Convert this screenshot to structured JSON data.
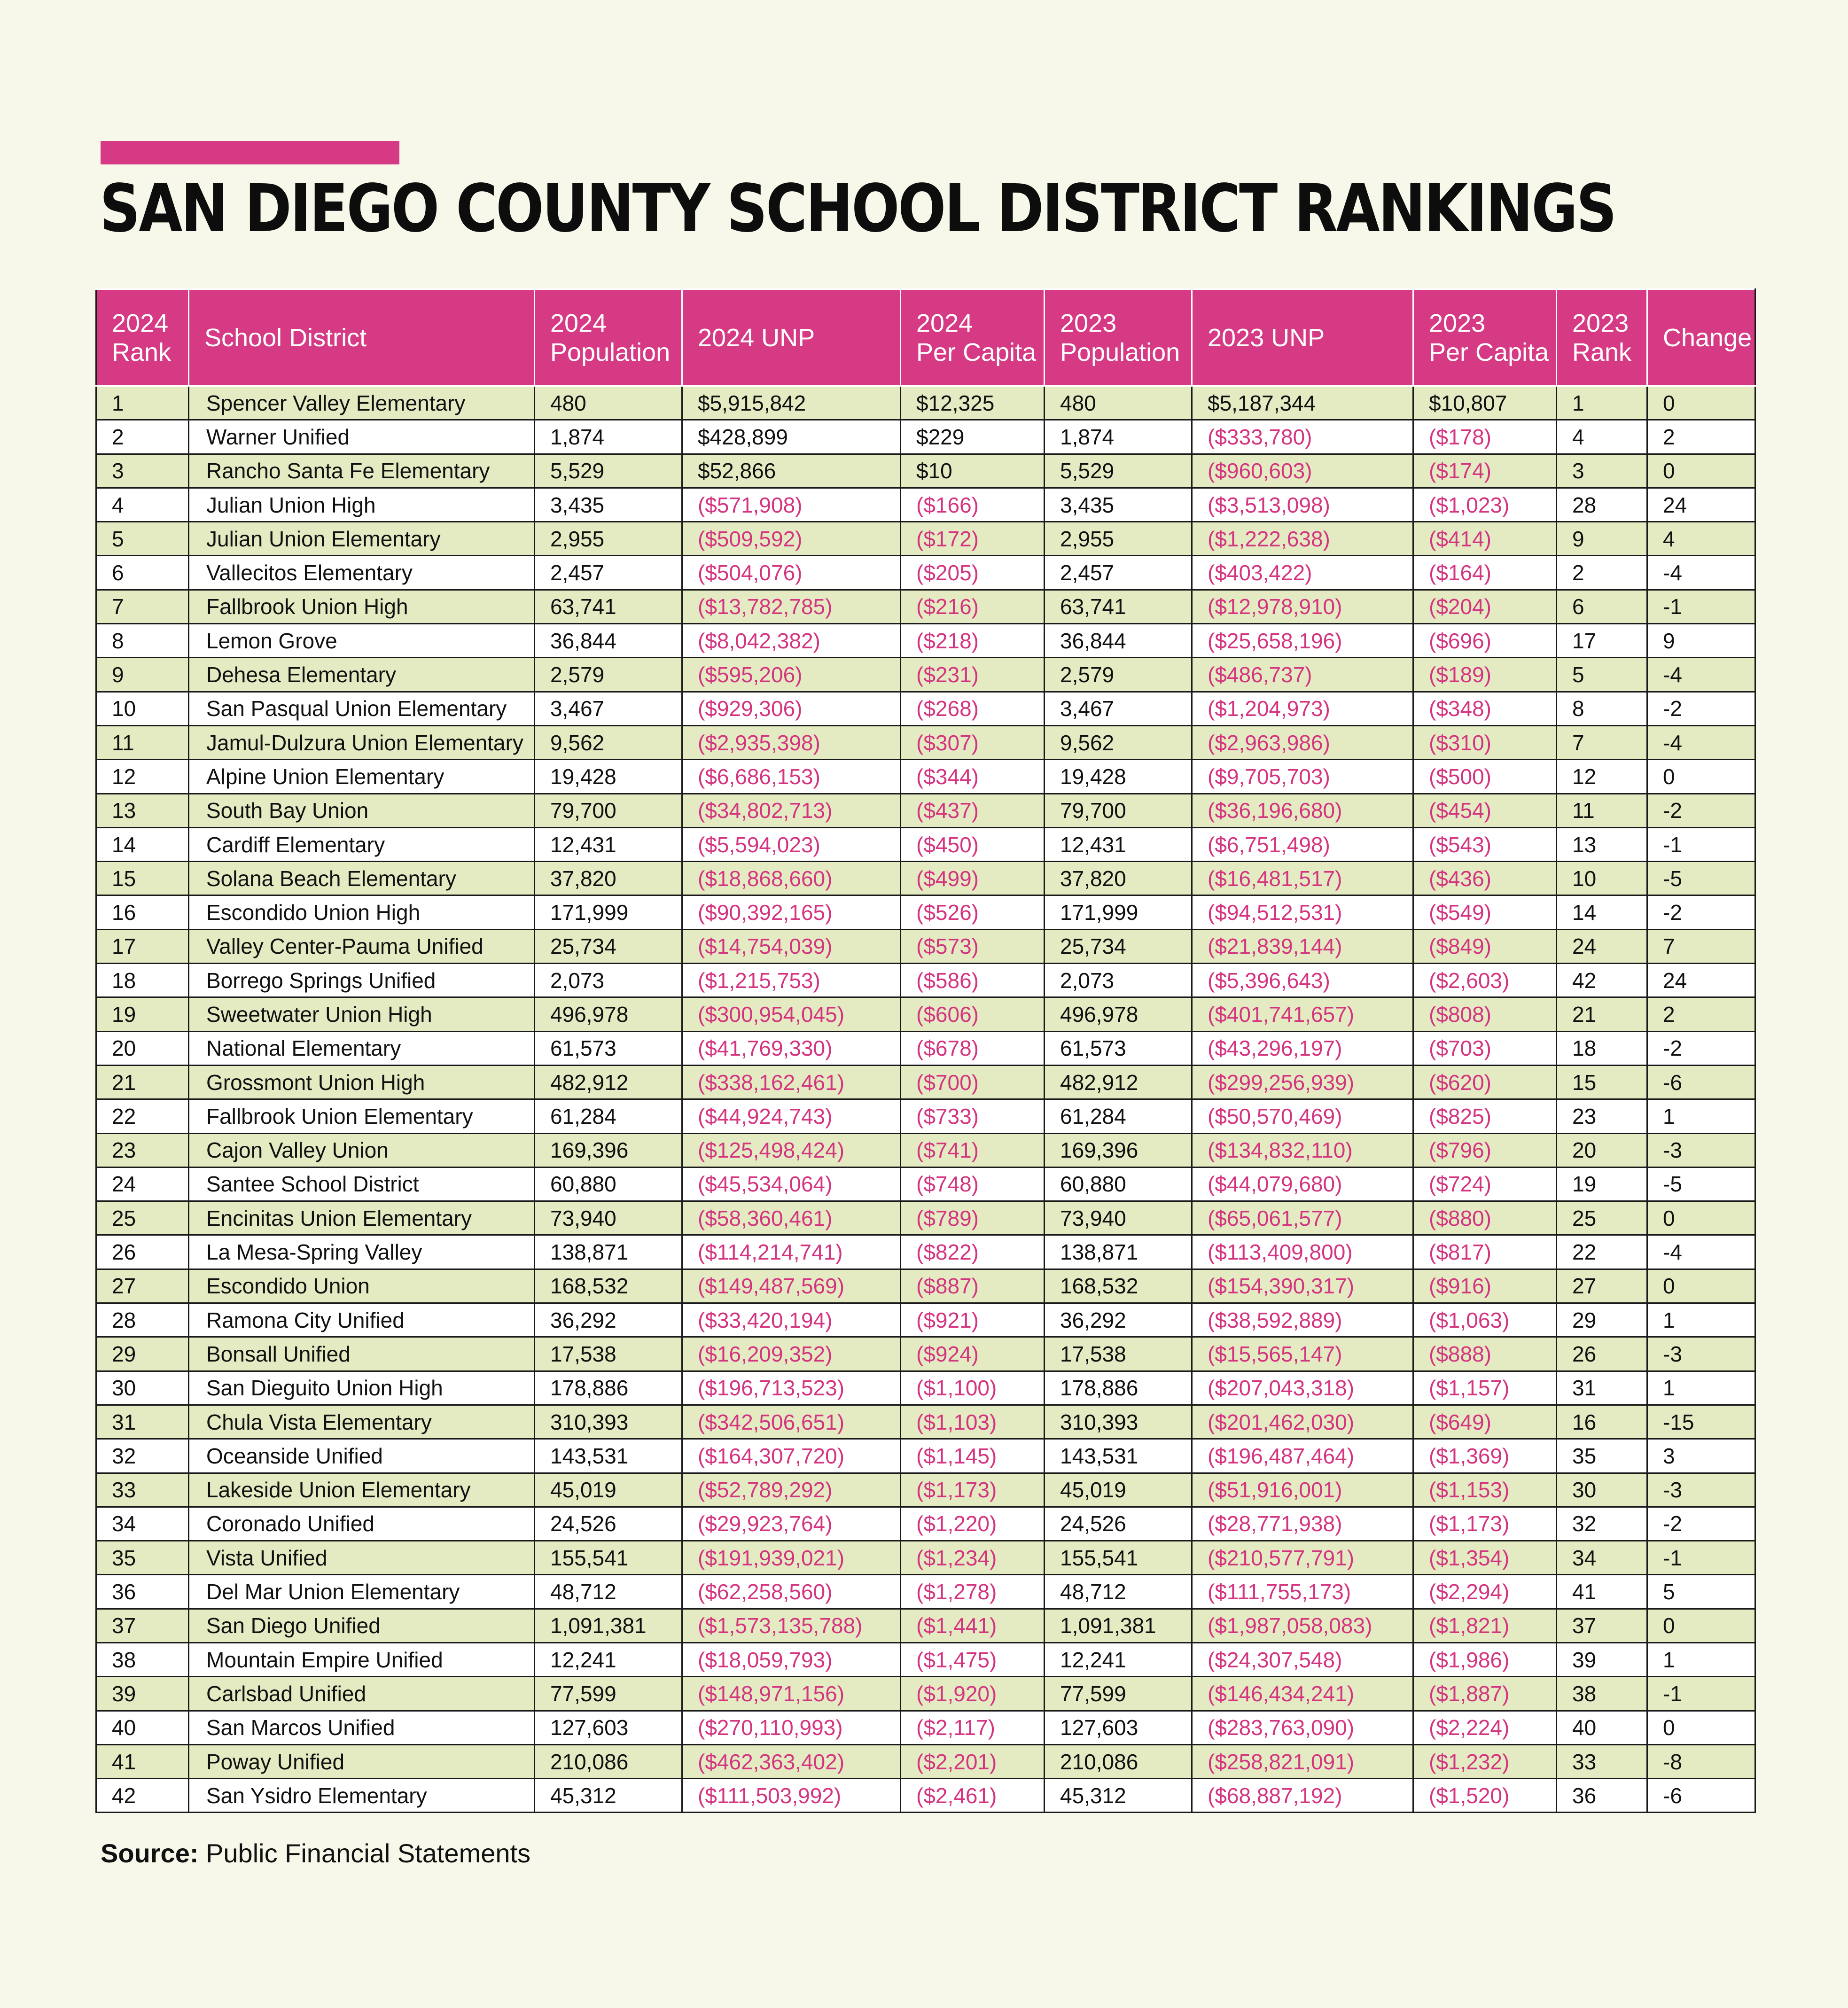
{
  "title": "SAN DIEGO COUNTY SCHOOL DISTRICT RANKINGS",
  "colors": {
    "accent": "#d63a84",
    "negative_text": "#d43480",
    "row_stripe": "#e4ebc2",
    "background": "#f8f8ea"
  },
  "table": {
    "headers": [
      {
        "line1": "2024",
        "line2": "Rank"
      },
      {
        "line1": "School District",
        "line2": ""
      },
      {
        "line1": "2024",
        "line2": "Population"
      },
      {
        "line1": "2024 UNP",
        "line2": ""
      },
      {
        "line1": "2024",
        "line2": "Per Capita"
      },
      {
        "line1": "2023",
        "line2": "Population"
      },
      {
        "line1": "2023 UNP",
        "line2": ""
      },
      {
        "line1": "2023",
        "line2": "Per Capita"
      },
      {
        "line1": "2023",
        "line2": "Rank"
      },
      {
        "line1": "Change",
        "line2": ""
      }
    ],
    "rows": [
      [
        "1",
        "Spencer Valley Elementary",
        "480",
        "$5,915,842",
        "$12,325",
        "480",
        "$5,187,344",
        "$10,807",
        "1",
        "0"
      ],
      [
        "2",
        "Warner Unified",
        "1,874",
        "$428,899",
        "$229",
        "1,874",
        "($333,780)",
        "($178)",
        "4",
        "2"
      ],
      [
        "3",
        "Rancho Santa Fe Elementary",
        "5,529",
        "$52,866",
        "$10",
        "5,529",
        "($960,603)",
        "($174)",
        "3",
        "0"
      ],
      [
        "4",
        "Julian Union High",
        "3,435",
        "($571,908)",
        "($166)",
        "3,435",
        "($3,513,098)",
        "($1,023)",
        "28",
        "24"
      ],
      [
        "5",
        "Julian Union Elementary",
        "2,955",
        "($509,592)",
        "($172)",
        "2,955",
        "($1,222,638)",
        "($414)",
        "9",
        "4"
      ],
      [
        "6",
        "Vallecitos Elementary",
        "2,457",
        "($504,076)",
        "($205)",
        "2,457",
        "($403,422)",
        "($164)",
        "2",
        "-4"
      ],
      [
        "7",
        "Fallbrook Union High",
        "63,741",
        "($13,782,785)",
        "($216)",
        "63,741",
        "($12,978,910)",
        "($204)",
        "6",
        "-1"
      ],
      [
        "8",
        "Lemon Grove",
        "36,844",
        "($8,042,382)",
        "($218)",
        "36,844",
        "($25,658,196)",
        "($696)",
        "17",
        "9"
      ],
      [
        "9",
        "Dehesa Elementary",
        "2,579",
        "($595,206)",
        "($231)",
        "2,579",
        "($486,737)",
        "($189)",
        "5",
        "-4"
      ],
      [
        "10",
        "San Pasqual Union Elementary",
        "3,467",
        "($929,306)",
        "($268)",
        "3,467",
        "($1,204,973)",
        "($348)",
        "8",
        "-2"
      ],
      [
        "11",
        "Jamul-Dulzura Union Elementary",
        "9,562",
        "($2,935,398)",
        "($307)",
        "9,562",
        "($2,963,986)",
        "($310)",
        "7",
        "-4"
      ],
      [
        "12",
        "Alpine Union Elementary",
        "19,428",
        "($6,686,153)",
        "($344)",
        "19,428",
        "($9,705,703)",
        "($500)",
        "12",
        "0"
      ],
      [
        "13",
        "South Bay Union",
        "79,700",
        "($34,802,713)",
        "($437)",
        "79,700",
        "($36,196,680)",
        "($454)",
        "11",
        "-2"
      ],
      [
        "14",
        "Cardiff Elementary",
        "12,431",
        "($5,594,023)",
        "($450)",
        "12,431",
        "($6,751,498)",
        "($543)",
        "13",
        "-1"
      ],
      [
        "15",
        "Solana Beach Elementary",
        "37,820",
        "($18,868,660)",
        "($499)",
        "37,820",
        "($16,481,517)",
        "($436)",
        "10",
        "-5"
      ],
      [
        "16",
        "Escondido Union High",
        "171,999",
        "($90,392,165)",
        "($526)",
        "171,999",
        "($94,512,531)",
        "($549)",
        "14",
        "-2"
      ],
      [
        "17",
        "Valley Center-Pauma Unified",
        "25,734",
        "($14,754,039)",
        "($573)",
        "25,734",
        "($21,839,144)",
        "($849)",
        "24",
        "7"
      ],
      [
        "18",
        "Borrego Springs Unified",
        "2,073",
        "($1,215,753)",
        "($586)",
        "2,073",
        "($5,396,643)",
        "($2,603)",
        "42",
        "24"
      ],
      [
        "19",
        "Sweetwater Union High",
        "496,978",
        "($300,954,045)",
        "($606)",
        "496,978",
        "($401,741,657)",
        "($808)",
        "21",
        "2"
      ],
      [
        "20",
        "National Elementary",
        "61,573",
        "($41,769,330)",
        "($678)",
        "61,573",
        "($43,296,197)",
        "($703)",
        "18",
        "-2"
      ],
      [
        "21",
        "Grossmont Union High",
        "482,912",
        "($338,162,461)",
        "($700)",
        "482,912",
        "($299,256,939)",
        "($620)",
        "15",
        "-6"
      ],
      [
        "22",
        "Fallbrook Union Elementary",
        "61,284",
        "($44,924,743)",
        "($733)",
        "61,284",
        "($50,570,469)",
        "($825)",
        "23",
        "1"
      ],
      [
        "23",
        "Cajon Valley Union",
        "169,396",
        "($125,498,424)",
        "($741)",
        "169,396",
        "($134,832,110)",
        "($796)",
        "20",
        "-3"
      ],
      [
        "24",
        "Santee School District",
        "60,880",
        "($45,534,064)",
        "($748)",
        "60,880",
        "($44,079,680)",
        "($724)",
        "19",
        "-5"
      ],
      [
        "25",
        "Encinitas Union Elementary",
        "73,940",
        "($58,360,461)",
        "($789)",
        "73,940",
        "($65,061,577)",
        "($880)",
        "25",
        "0"
      ],
      [
        "26",
        "La Mesa-Spring Valley",
        "138,871",
        "($114,214,741)",
        "($822)",
        "138,871",
        "($113,409,800)",
        "($817)",
        "22",
        "-4"
      ],
      [
        "27",
        "Escondido Union",
        "168,532",
        "($149,487,569)",
        "($887)",
        "168,532",
        "($154,390,317)",
        "($916)",
        "27",
        "0"
      ],
      [
        "28",
        "Ramona City Unified",
        "36,292",
        "($33,420,194)",
        "($921)",
        "36,292",
        "($38,592,889)",
        "($1,063)",
        "29",
        "1"
      ],
      [
        "29",
        "Bonsall Unified",
        "17,538",
        "($16,209,352)",
        "($924)",
        "17,538",
        "($15,565,147)",
        "($888)",
        "26",
        "-3"
      ],
      [
        "30",
        "San Dieguito Union High",
        "178,886",
        "($196,713,523)",
        "($1,100)",
        "178,886",
        "($207,043,318)",
        "($1,157)",
        "31",
        "1"
      ],
      [
        "31",
        "Chula Vista Elementary",
        "310,393",
        "($342,506,651)",
        "($1,103)",
        "310,393",
        "($201,462,030)",
        "($649)",
        "16",
        "-15"
      ],
      [
        "32",
        "Oceanside Unified",
        "143,531",
        "($164,307,720)",
        "($1,145)",
        "143,531",
        "($196,487,464)",
        "($1,369)",
        "35",
        "3"
      ],
      [
        "33",
        "Lakeside Union Elementary",
        "45,019",
        "($52,789,292)",
        "($1,173)",
        "45,019",
        "($51,916,001)",
        "($1,153)",
        "30",
        "-3"
      ],
      [
        "34",
        "Coronado Unified",
        "24,526",
        "($29,923,764)",
        "($1,220)",
        "24,526",
        "($28,771,938)",
        "($1,173)",
        "32",
        "-2"
      ],
      [
        "35",
        "Vista Unified",
        "155,541",
        "($191,939,021)",
        "($1,234)",
        "155,541",
        "($210,577,791)",
        "($1,354)",
        "34",
        "-1"
      ],
      [
        "36",
        "Del Mar Union Elementary",
        "48,712",
        "($62,258,560)",
        "($1,278)",
        "48,712",
        "($111,755,173)",
        "($2,294)",
        "41",
        "5"
      ],
      [
        "37",
        "San Diego Unified",
        "1,091,381",
        "($1,573,135,788)",
        "($1,441)",
        "1,091,381",
        "($1,987,058,083)",
        "($1,821)",
        "37",
        "0"
      ],
      [
        "38",
        "Mountain Empire Unified",
        "12,241",
        "($18,059,793)",
        "($1,475)",
        "12,241",
        "($24,307,548)",
        "($1,986)",
        "39",
        "1"
      ],
      [
        "39",
        "Carlsbad Unified",
        "77,599",
        "($148,971,156)",
        "($1,920)",
        "77,599",
        "($146,434,241)",
        "($1,887)",
        "38",
        "-1"
      ],
      [
        "40",
        "San Marcos Unified",
        "127,603",
        "($270,110,993)",
        "($2,117)",
        "127,603",
        "($283,763,090)",
        "($2,224)",
        "40",
        "0"
      ],
      [
        "41",
        "Poway Unified",
        "210,086",
        "($462,363,402)",
        "($2,201)",
        "210,086",
        "($258,821,091)",
        "($1,232)",
        "33",
        "-8"
      ],
      [
        "42",
        "San Ysidro Elementary",
        "45,312",
        "($111,503,992)",
        "($2,461)",
        "45,312",
        "($68,887,192)",
        "($1,520)",
        "36",
        "-6"
      ]
    ]
  },
  "source": {
    "label": "Source:",
    "text": "Public Financial Statements"
  }
}
